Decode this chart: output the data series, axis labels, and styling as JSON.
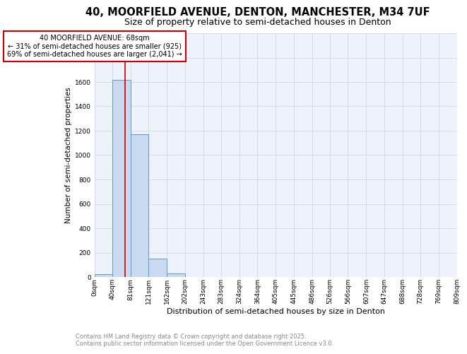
{
  "title": "40, MOORFIELD AVENUE, DENTON, MANCHESTER, M34 7UF",
  "subtitle": "Size of property relative to semi-detached houses in Denton",
  "xlabel": "Distribution of semi-detached houses by size in Denton",
  "ylabel": "Number of semi-detached properties",
  "bin_edges": [
    0,
    40,
    81,
    121,
    162,
    202,
    243,
    283,
    324,
    364,
    405,
    445,
    486,
    526,
    566,
    607,
    647,
    688,
    728,
    769,
    809
  ],
  "bar_heights": [
    25,
    1620,
    1170,
    150,
    30,
    0,
    0,
    0,
    0,
    0,
    0,
    0,
    0,
    0,
    0,
    0,
    0,
    0,
    0,
    0
  ],
  "bar_color": "#c9d9f0",
  "bar_edge_color": "#5b9bd5",
  "property_size": 68,
  "property_line_color": "#cc0000",
  "annotation_text": "40 MOORFIELD AVENUE: 68sqm\n← 31% of semi-detached houses are smaller (925)\n69% of semi-detached houses are larger (2,041) →",
  "annotation_box_color": "#cc0000",
  "ylim": [
    0,
    2000
  ],
  "yticks": [
    0,
    200,
    400,
    600,
    800,
    1000,
    1200,
    1400,
    1600,
    1800,
    2000
  ],
  "footnote_line1": "Contains HM Land Registry data © Crown copyright and database right 2025.",
  "footnote_line2": "Contains public sector information licensed under the Open Government Licence v3.0.",
  "grid_color": "#d0d8e8",
  "background_color": "#eef2fa",
  "title_fontsize": 10.5,
  "subtitle_fontsize": 9,
  "tick_label_fontsize": 6.5,
  "ylabel_fontsize": 7.5,
  "xlabel_fontsize": 8,
  "annotation_fontsize": 7,
  "footnote_fontsize": 6
}
